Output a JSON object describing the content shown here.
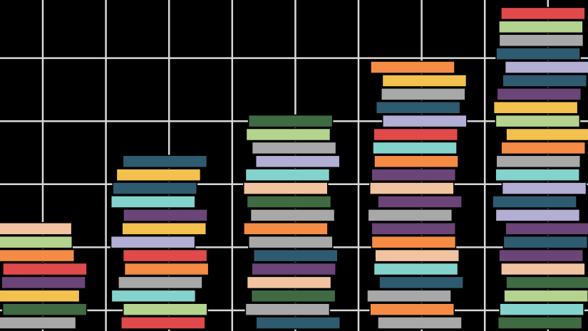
{
  "chart_data": {
    "type": "pictogram",
    "categories": [
      null,
      null,
      null,
      null,
      null
    ],
    "values": [
      8,
      13,
      16,
      20,
      24
    ],
    "colors": [
      "#e04a4a",
      "#b3aed4",
      "#f48c45",
      "#2e5b6f",
      "#f2c3a0",
      "#3f6a42",
      "#a8a8a8",
      "#f2c14e",
      "#83d3cc",
      "#6b4478",
      "#b4d38f"
    ],
    "grid": true
  }
}
